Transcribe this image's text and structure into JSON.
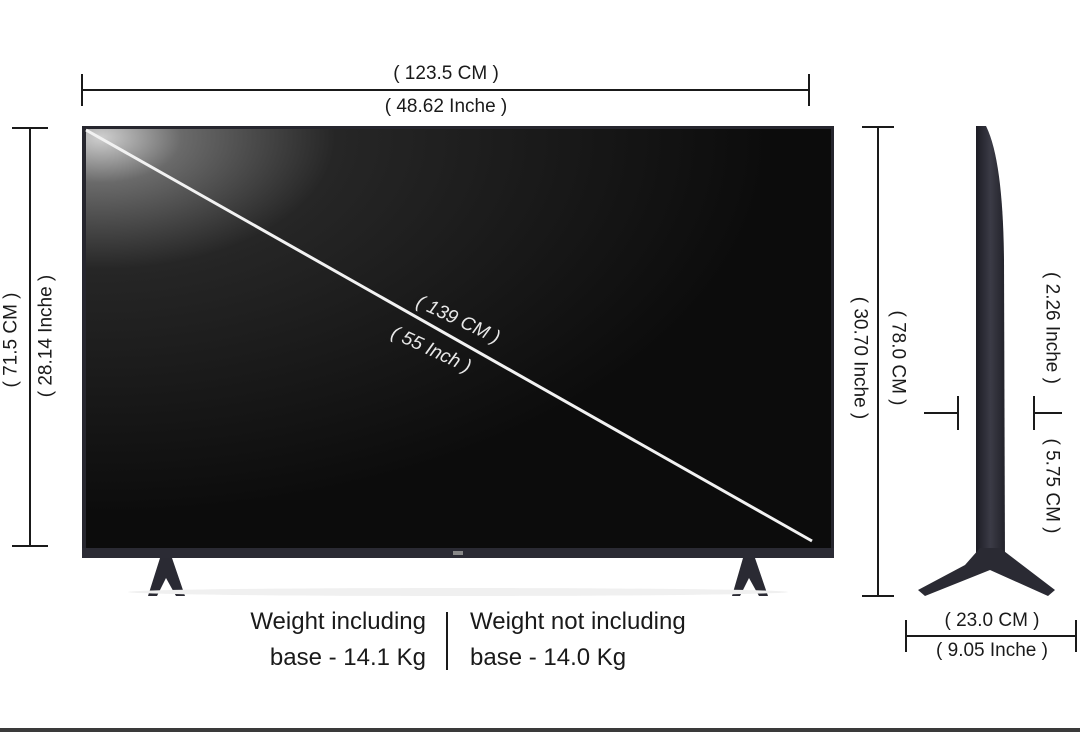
{
  "dimensions": {
    "width_cm": "( 123.5 CM )",
    "width_in": "( 48.62 Inche )",
    "height_cm": "( 71.5 CM )",
    "height_in": "( 28.14 Inche )",
    "diagonal_cm": "( 139 CM )",
    "diagonal_in": "( 55 Inch )",
    "stand_height_cm": "( 78.0 CM )",
    "stand_height_in": "( 30.70 Inche )",
    "depth_panel_in": "( 2.26  Inche )",
    "depth_panel_cm": "( 5.75 CM )",
    "stand_depth_cm": "( 23.0 CM )",
    "stand_depth_in": "( 9.05 Inche )"
  },
  "weight": {
    "including_line1": "Weight including",
    "including_line2": "base - 14.1 Kg",
    "not_including_line1": "Weight not including",
    "not_including_line2": "base - 14.0 Kg"
  },
  "colors": {
    "screen_dark": "#0d0d0d",
    "bezel": "#26262e",
    "stand": "#2a2a33",
    "dim_line": "#1a1a1a"
  }
}
